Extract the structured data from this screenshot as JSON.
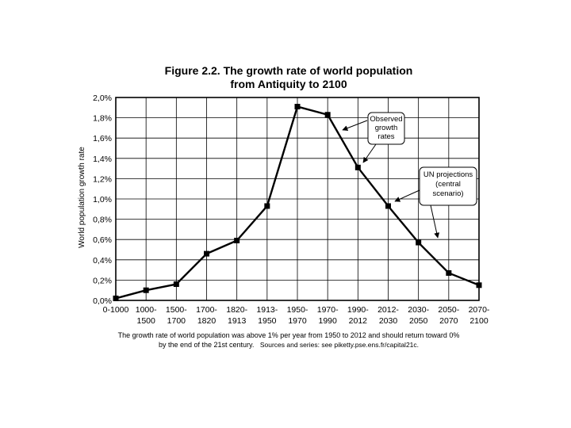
{
  "chart_data": {
    "type": "line",
    "title_line1": "Figure 2.2. The growth rate of world population",
    "title_line2": "from Antiquity to 2100",
    "ylabel": "World population growth rate",
    "ylim": [
      0,
      2.0
    ],
    "y_ticks": [
      {
        "value": 0.0,
        "label": "0,0%"
      },
      {
        "value": 0.2,
        "label": "0,2%"
      },
      {
        "value": 0.4,
        "label": "0,4%"
      },
      {
        "value": 0.6,
        "label": "0,6%"
      },
      {
        "value": 0.8,
        "label": "0,8%"
      },
      {
        "value": 1.0,
        "label": "1,0%"
      },
      {
        "value": 1.2,
        "label": "1,2%"
      },
      {
        "value": 1.4,
        "label": "1,4%"
      },
      {
        "value": 1.6,
        "label": "1,6%"
      },
      {
        "value": 1.8,
        "label": "1,8%"
      },
      {
        "value": 2.0,
        "label": "2,0%"
      }
    ],
    "categories": [
      [
        "0-1000"
      ],
      [
        "1000-",
        "1500"
      ],
      [
        "1500-",
        "1700"
      ],
      [
        "1700-",
        "1820"
      ],
      [
        "1820-",
        "1913"
      ],
      [
        "1913-",
        "1950"
      ],
      [
        "1950-",
        "1970"
      ],
      [
        "1970-",
        "1990"
      ],
      [
        "1990-",
        "2012"
      ],
      [
        "2012-",
        "2030"
      ],
      [
        "2030-",
        "2050"
      ],
      [
        "2050-",
        "2070"
      ],
      [
        "2070-",
        "2100"
      ]
    ],
    "values": [
      0.02,
      0.1,
      0.16,
      0.46,
      0.59,
      0.93,
      1.91,
      1.83,
      1.31,
      0.93,
      0.57,
      0.27,
      0.15
    ],
    "grid": true,
    "annotations": [
      {
        "lines": [
          "Observed",
          "growth",
          "rates"
        ]
      },
      {
        "lines": [
          "UN  projections",
          "(central",
          "scenario)"
        ]
      }
    ],
    "note_line1": "The growth rate of world population was above 1% per year from 1950 to 2012 and should return toward 0%",
    "note_line2_a": "by the end of the 21st century.",
    "note_line2_b": "Sources and series: see piketty.pse.ens.fr/capital21c."
  }
}
